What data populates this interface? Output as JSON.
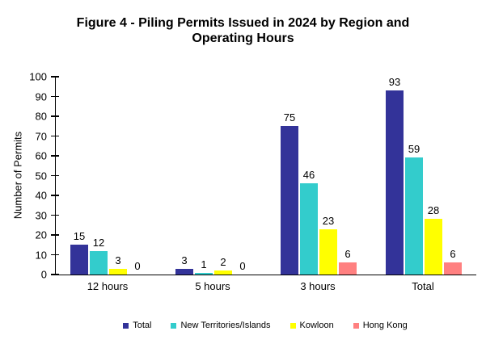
{
  "title": {
    "line1": "Figure 4 - Piling Permits Issued in 2024 by Region and",
    "line2": "Operating Hours"
  },
  "chart_data": {
    "type": "bar",
    "title": "Figure 4 - Piling Permits Issued in 2024 by Region and Operating Hours",
    "categories": [
      "12 hours",
      "5 hours",
      "3 hours",
      "Total"
    ],
    "series": [
      {
        "name": "Total",
        "color": "#333399",
        "values": [
          15,
          3,
          75,
          93
        ]
      },
      {
        "name": "New Territories/Islands",
        "color": "#33CCCC",
        "values": [
          12,
          1,
          46,
          59
        ]
      },
      {
        "name": "Kowloon",
        "color": "#FFFF00",
        "values": [
          3,
          2,
          23,
          28
        ]
      },
      {
        "name": "Hong Kong",
        "color": "#FF8080",
        "values": [
          0,
          0,
          6,
          6
        ]
      }
    ],
    "xlabel": "",
    "ylabel": "Number of Permits",
    "ylim": [
      0,
      100
    ],
    "ytick_step": 10,
    "yticks": [
      0,
      10,
      20,
      30,
      40,
      50,
      60,
      70,
      80,
      90,
      100
    ],
    "grid": false,
    "data_labels": true,
    "legend_position": "bottom",
    "axis_color": "#000000",
    "background_color": "#FFFFFF"
  }
}
